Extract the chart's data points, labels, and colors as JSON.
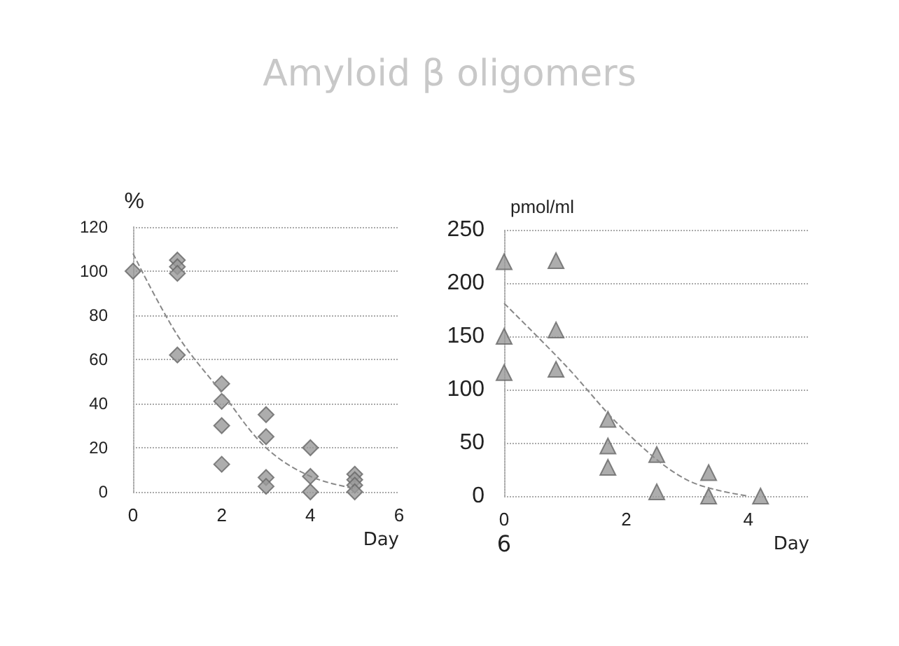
{
  "chart_data": [
    {
      "type": "scatter",
      "title": "Amyloid β oligomers",
      "ylabel": "%",
      "xlabel": "Day",
      "xlim": [
        0,
        6
      ],
      "xticks": [
        0,
        2,
        4,
        6
      ],
      "ylim": [
        0,
        120
      ],
      "yticks": [
        0,
        20,
        40,
        60,
        80,
        100,
        120
      ],
      "grid": "y",
      "series": [
        {
          "marker": "diamond",
          "color": "#999999",
          "x": [
            0,
            1,
            1,
            1,
            1,
            2,
            2,
            2,
            2,
            3,
            3,
            3,
            3,
            4,
            4,
            4,
            5,
            5,
            5,
            5
          ],
          "values": [
            100,
            105,
            102,
            99,
            62,
            49,
            41,
            30,
            12.5,
            35,
            25,
            6.5,
            2.5,
            20,
            7,
            0,
            8,
            5.5,
            3,
            0
          ]
        },
        {
          "type": "line",
          "marker": "none",
          "line_style": "dashed",
          "color": "#888888",
          "x": [
            0,
            1,
            2,
            3,
            4,
            5
          ],
          "values": [
            108,
            71,
            45,
            20,
            7,
            1.5
          ]
        }
      ]
    },
    {
      "type": "scatter",
      "ylabel": "pmol/ml",
      "xlabel": "Day",
      "xlim": [
        0,
        5
      ],
      "xticks": [
        0,
        2,
        4
      ],
      "ylim": [
        0,
        250
      ],
      "yticks": [
        0,
        50,
        100,
        150,
        200,
        250
      ],
      "grid": "y",
      "annotations": [
        "6"
      ],
      "series": [
        {
          "marker": "triangle",
          "color": "#999999",
          "x": [
            0,
            0,
            0,
            0.85,
            0.85,
            0.85,
            1.7,
            1.7,
            1.7,
            2.5,
            2.5,
            3.35,
            3.35,
            4.2
          ],
          "values": [
            220,
            150,
            116,
            221,
            156,
            119,
            72,
            47,
            27,
            39,
            4,
            22,
            0,
            0
          ]
        },
        {
          "type": "line",
          "marker": "none",
          "line_style": "dashed",
          "color": "#888888",
          "x": [
            0,
            1,
            2,
            3,
            4
          ],
          "values": [
            181,
            123,
            60,
            15,
            0
          ]
        }
      ]
    }
  ]
}
